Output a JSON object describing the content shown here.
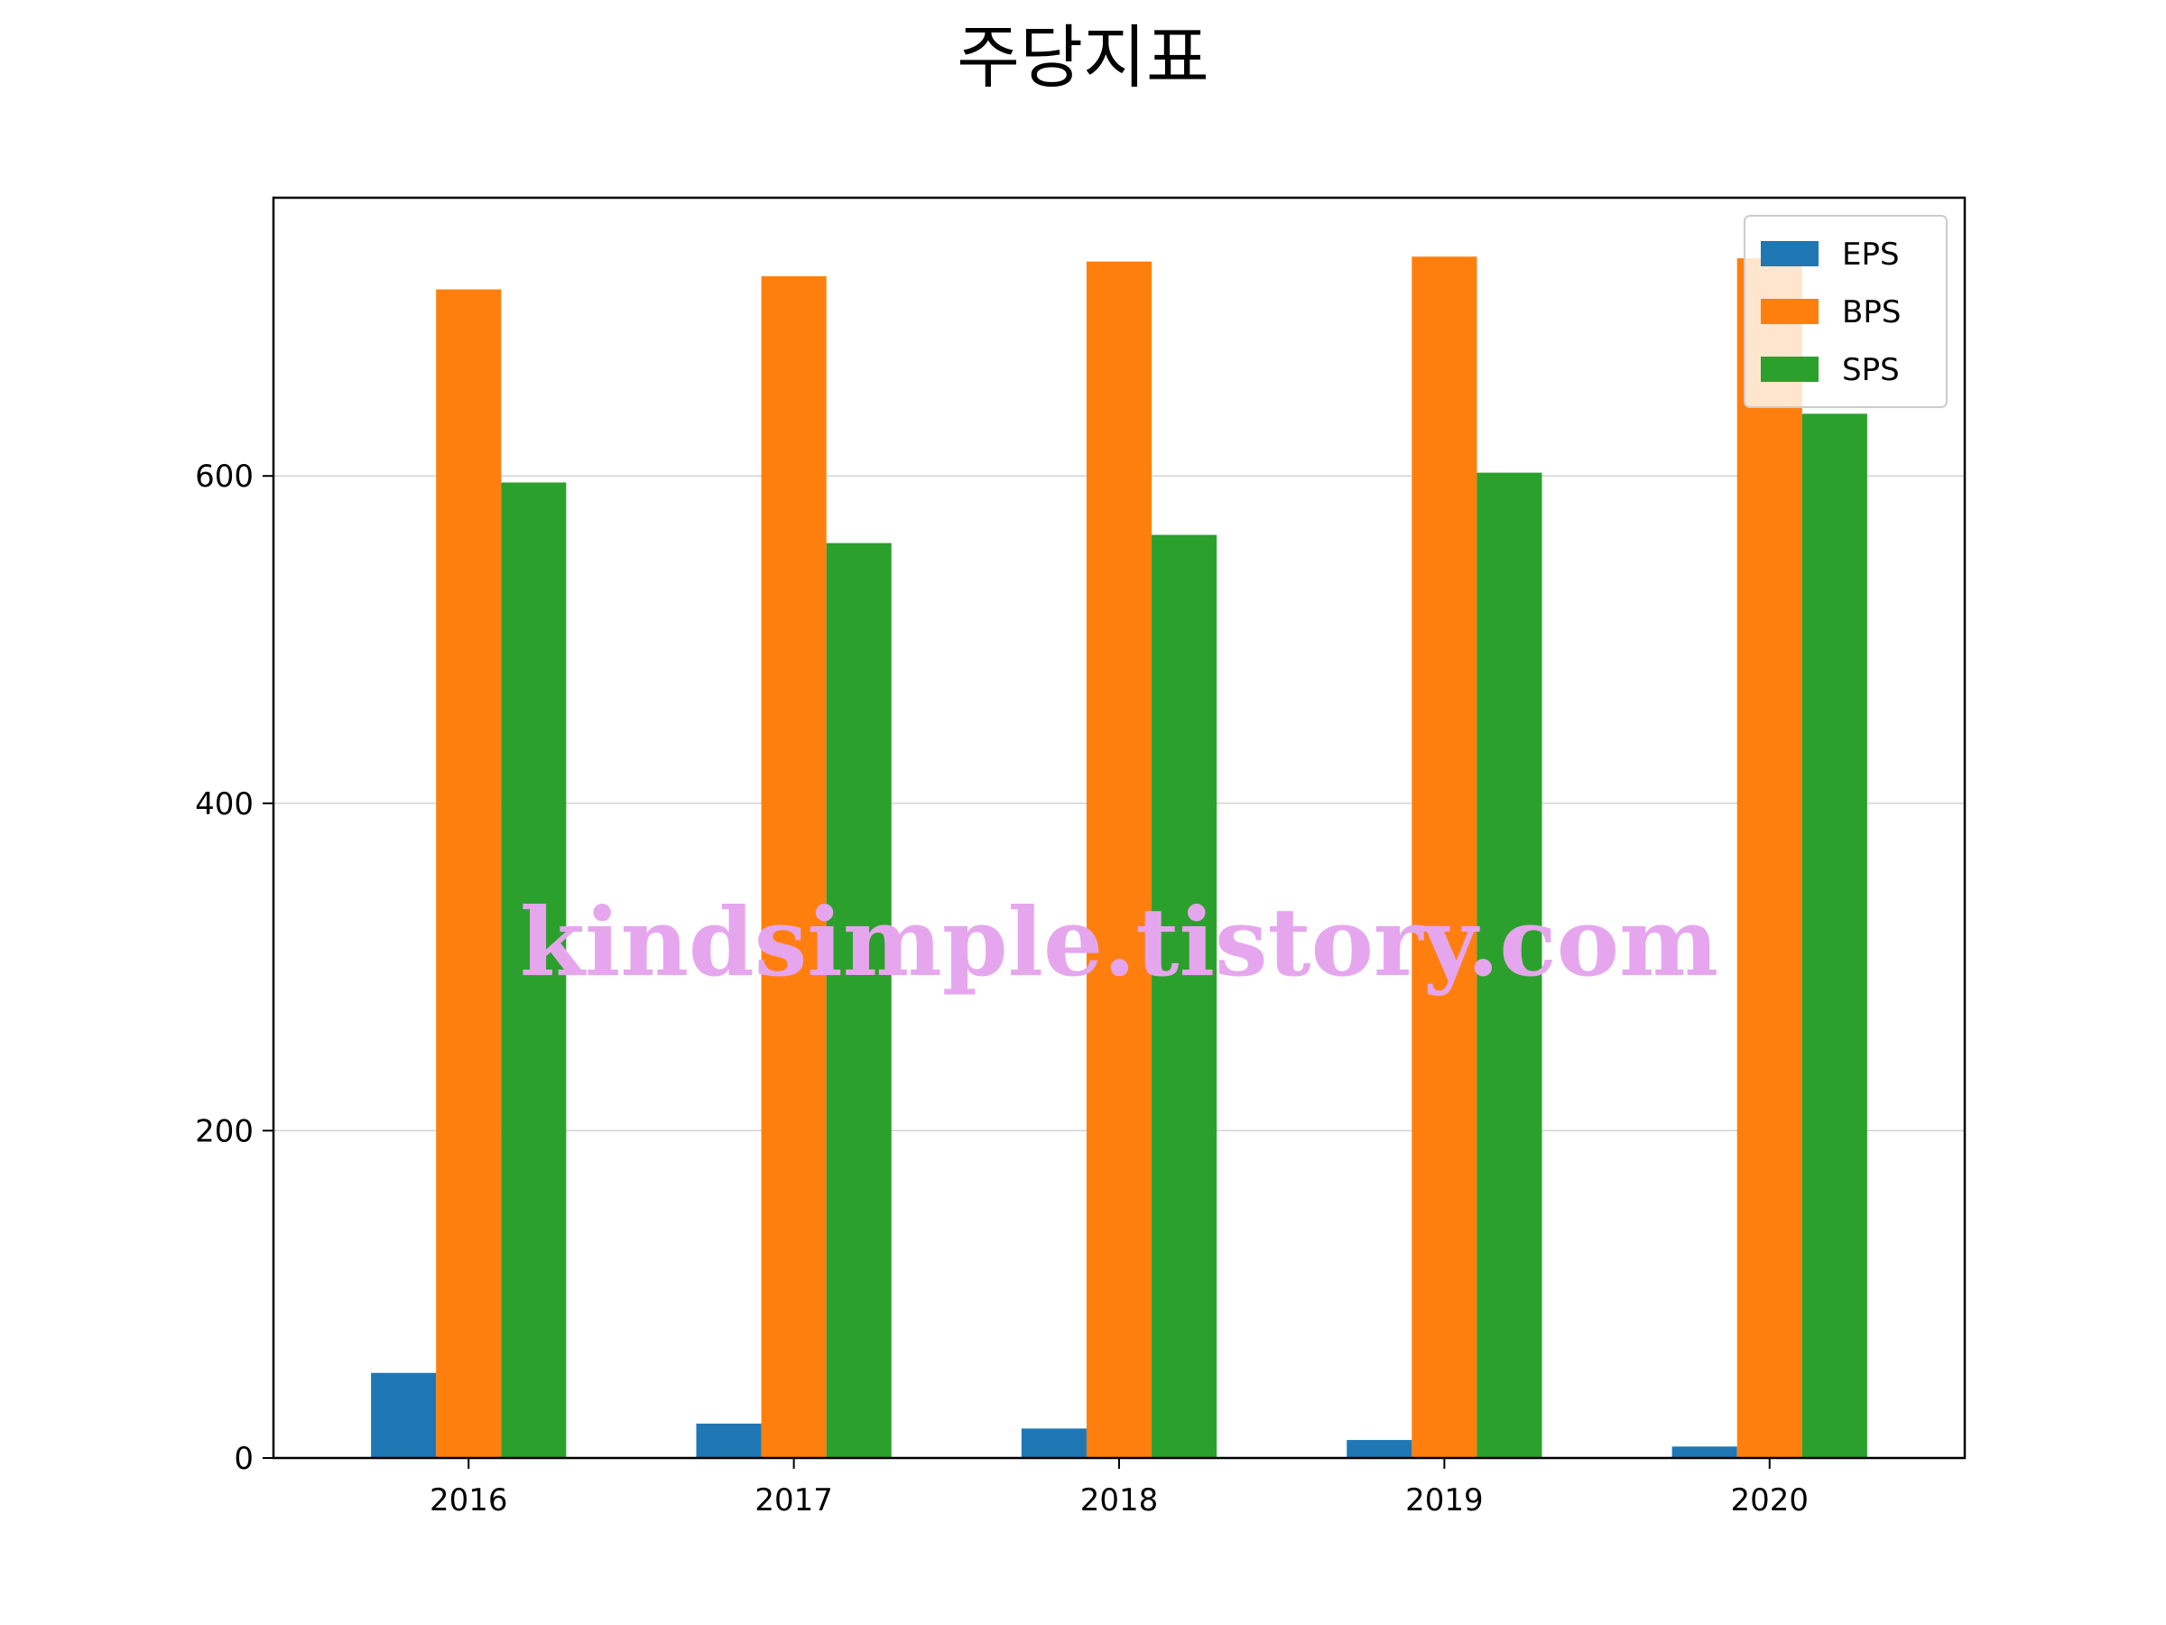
{
  "chart_data": {
    "type": "bar",
    "title": "주당지표",
    "xlabel": "",
    "ylabel": "",
    "categories": [
      "2016",
      "2017",
      "2018",
      "2019",
      "2020"
    ],
    "series": [
      {
        "name": "EPS",
        "color": "#1f77b4",
        "values": [
          52,
          21,
          18,
          11,
          7
        ]
      },
      {
        "name": "BPS",
        "color": "#ff7f0e",
        "values": [
          714,
          722,
          731,
          734,
          733
        ]
      },
      {
        "name": "SPS",
        "color": "#2ca02c",
        "values": [
          596,
          559,
          564,
          602,
          638
        ]
      }
    ],
    "ylim": [
      0,
      770
    ],
    "yticks": [
      0,
      200,
      400,
      600
    ],
    "ytick_labels": [
      "0",
      "200",
      "400",
      "600"
    ],
    "grid": "y",
    "legend_position": "top-right",
    "watermark": "kindsimple.tistory.com"
  }
}
